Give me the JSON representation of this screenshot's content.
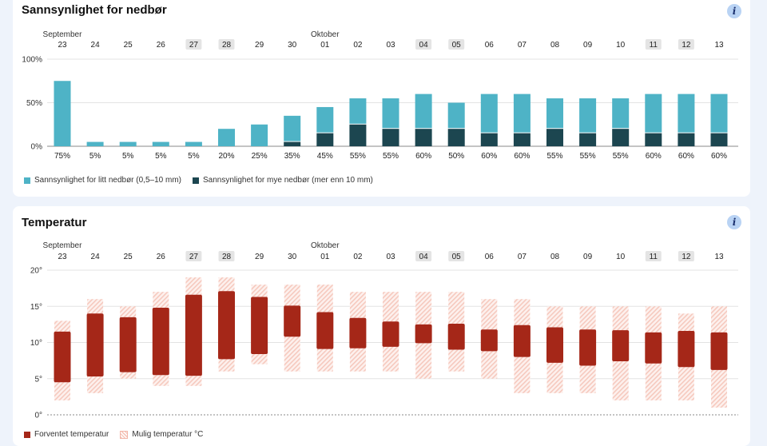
{
  "precip": {
    "title": "Sannsynlighet for nedbør",
    "info_label": "i",
    "legend_light": "Sannsynlighet for litt nedbør (0,5–10 mm)",
    "legend_heavy": "Sannsynlighet for mye nedbør (mer enn 10 mm)"
  },
  "temp": {
    "title": "Temperatur",
    "info_label": "i",
    "legend_expected": "Forventet temperatur",
    "legend_possible": "Mulig temperatur °C"
  },
  "colors": {
    "light_rain": "#4eb3c6",
    "heavy_rain": "#1c4650",
    "expected_temp": "#a52718",
    "possible_temp": "#f6c9be",
    "highlight_day": "#e4e4e4",
    "page_bg": "#eef3fb"
  },
  "chart_data": [
    {
      "type": "bar",
      "title": "Sannsynlighet for nedbør",
      "month_labels": [
        {
          "index": 0,
          "text": "September"
        },
        {
          "index": 8,
          "text": "Oktober"
        }
      ],
      "categories": [
        "23",
        "24",
        "25",
        "26",
        "27",
        "28",
        "29",
        "30",
        "01",
        "02",
        "03",
        "04",
        "05",
        "06",
        "07",
        "08",
        "09",
        "10",
        "11",
        "12",
        "13"
      ],
      "highlighted_categories": [
        "27",
        "28",
        "04",
        "05",
        "11",
        "12"
      ],
      "yticks": [
        "0%",
        "50%",
        "100%"
      ],
      "ylim": [
        0,
        100
      ],
      "series": [
        {
          "name": "Sannsynlighet for litt nedbør (0,5–10 mm)",
          "values": [
            75,
            5,
            5,
            5,
            5,
            20,
            25,
            30,
            30,
            30,
            35,
            40,
            30,
            45,
            45,
            35,
            40,
            35,
            45,
            45,
            45
          ]
        },
        {
          "name": "Sannsynlighet for mye nedbør (mer enn 10 mm)",
          "values": [
            0,
            0,
            0,
            0,
            0,
            0,
            0,
            5,
            15,
            25,
            20,
            20,
            20,
            15,
            15,
            20,
            15,
            20,
            15,
            15,
            15
          ]
        }
      ],
      "total_labels": [
        "75%",
        "5%",
        "5%",
        "5%",
        "5%",
        "20%",
        "25%",
        "35%",
        "45%",
        "55%",
        "55%",
        "60%",
        "50%",
        "60%",
        "60%",
        "55%",
        "55%",
        "55%",
        "60%",
        "60%",
        "60%"
      ],
      "grid": true,
      "legend": "bottom-left"
    },
    {
      "type": "bar",
      "title": "Temperatur",
      "month_labels": [
        {
          "index": 0,
          "text": "September"
        },
        {
          "index": 8,
          "text": "Oktober"
        }
      ],
      "categories": [
        "23",
        "24",
        "25",
        "26",
        "27",
        "28",
        "29",
        "30",
        "01",
        "02",
        "03",
        "04",
        "05",
        "06",
        "07",
        "08",
        "09",
        "10",
        "11",
        "12",
        "13"
      ],
      "highlighted_categories": [
        "27",
        "28",
        "04",
        "05",
        "11",
        "12"
      ],
      "yticks": [
        "0°",
        "5°",
        "10°",
        "15°",
        "20°"
      ],
      "ylim": [
        0,
        20
      ],
      "series": [
        {
          "name": "Forventet temperatur",
          "low": [
            4.5,
            5.3,
            5.9,
            5.5,
            5.4,
            7.7,
            8.4,
            10.8,
            9.1,
            9.2,
            9.4,
            9.9,
            9.0,
            8.8,
            8.0,
            7.2,
            6.8,
            7.4,
            7.1,
            6.6,
            6.2
          ],
          "high": [
            11.5,
            14.0,
            13.5,
            14.8,
            16.6,
            17.1,
            16.3,
            15.1,
            14.2,
            13.4,
            12.9,
            12.5,
            12.6,
            11.8,
            12.4,
            12.1,
            11.8,
            11.7,
            11.4,
            11.6,
            11.4
          ]
        },
        {
          "name": "Mulig temperatur °C",
          "low": [
            2,
            3,
            5,
            4,
            4,
            6,
            7,
            6,
            6,
            6,
            6,
            5,
            6,
            5,
            3,
            3,
            3,
            2,
            2,
            2,
            1
          ],
          "high": [
            13,
            16,
            15,
            17,
            19,
            19,
            18,
            18,
            18,
            17,
            17,
            17,
            17,
            16,
            16,
            15,
            15,
            15,
            15,
            14,
            15
          ]
        }
      ],
      "grid": true,
      "legend": "bottom-left"
    }
  ]
}
